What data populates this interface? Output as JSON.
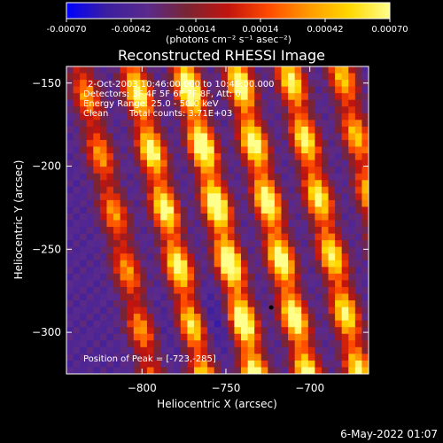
{
  "colors": {
    "background": "#000000",
    "text": "#ffffff",
    "colormap": [
      "#0000ff",
      "#3c1fa0",
      "#5a2a8c",
      "#7a2432",
      "#c2140e",
      "#ff4a00",
      "#ff9a00",
      "#ffd800",
      "#ffff8c"
    ]
  },
  "colorbar": {
    "ticks": [
      "-0.00070",
      "-0.00042",
      "-0.00014",
      "0.00014",
      "0.00042",
      "0.00070"
    ],
    "unit_label": "(photons cm⁻² s⁻¹ asec⁻²)",
    "range": [
      -0.0007,
      0.0007
    ]
  },
  "annotations": {
    "time_range": "2-Oct-2003 10:46:00.000 to 10:49:00.000",
    "detectors": "Detectors: 3F 4F 5F 6F 7F 8F, Att: 0",
    "energy_range": "Energy Range: 25.0 - 50.0 keV",
    "method": "Clean",
    "total_counts": "Total counts: 3.71E+03",
    "peak_position": "Position of Peak = [-723,-285]"
  },
  "footer": {
    "date": "6-May-2022 01:07"
  },
  "chart_data": {
    "type": "heatmap",
    "title": "Reconstructed RHESSI Image",
    "xlabel": "Heliocentric X (arcsec)",
    "ylabel": "Heliocentric Y (arcsec)",
    "xlim": [
      -845,
      -665
    ],
    "ylim": [
      -325,
      -140
    ],
    "x_ticks": [
      -800,
      -750,
      -700
    ],
    "y_ticks": [
      -300,
      -250,
      -200,
      -150
    ],
    "x_tick_labels": [
      "−800",
      "−750",
      "−700"
    ],
    "y_tick_labels": [
      "−300",
      "−250",
      "−200",
      "−150"
    ],
    "peak": [
      -723,
      -285
    ],
    "ridges": [
      {
        "x_at_top": -837,
        "slope_x_per_y": 0.23,
        "strength": 0.55
      },
      {
        "x_at_top": -806,
        "slope_x_per_y": 0.23,
        "strength": 0.85
      },
      {
        "x_at_top": -775,
        "slope_x_per_y": 0.23,
        "strength": 1.0
      },
      {
        "x_at_top": -744,
        "slope_x_per_y": 0.23,
        "strength": 0.9
      },
      {
        "x_at_top": -713,
        "slope_x_per_y": 0.23,
        "strength": 0.8
      },
      {
        "x_at_top": -682,
        "slope_x_per_y": 0.23,
        "strength": 0.65
      }
    ]
  }
}
